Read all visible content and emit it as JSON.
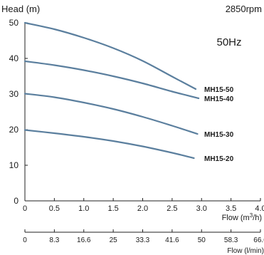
{
  "chart_data": {
    "type": "line",
    "ylabel": "Head (m)",
    "speed_label": "2850rpm",
    "frequency_label": "50Hz",
    "xlabel": "Flow",
    "xunit_prefix": "(m",
    "xunit_exp": "3",
    "xunit_suffix": "/h)",
    "xlabel2": "Flow (l/min)",
    "xlim": [
      0,
      4.0
    ],
    "ylim": [
      0,
      50
    ],
    "xticks": [
      "0",
      "0.5",
      "1.0",
      "1.5",
      "2.0",
      "2.5",
      "3.0",
      "3.5",
      "4.0"
    ],
    "yticks": [
      "0",
      "10",
      "20",
      "30",
      "40",
      "50"
    ],
    "xticks2": [
      "0",
      "8.3",
      "16.6",
      "25",
      "33.3",
      "41.6",
      "50",
      "58.3",
      "66.6"
    ],
    "grid": false,
    "line_color": "#5b7f9e",
    "series": [
      {
        "name": "MH15-50",
        "x": [
          0,
          0.5,
          1.0,
          1.5,
          2.0,
          2.5,
          2.9
        ],
        "y": [
          50,
          48.2,
          45.8,
          42.9,
          39.3,
          34.9,
          31.4
        ]
      },
      {
        "name": "MH15-40",
        "x": [
          0,
          0.5,
          1.0,
          1.5,
          2.0,
          2.5,
          2.95
        ],
        "y": [
          39.2,
          38.1,
          36.7,
          35.0,
          33.0,
          30.7,
          28.8
        ]
      },
      {
        "name": "MH15-30",
        "x": [
          0,
          0.5,
          1.0,
          1.5,
          2.0,
          2.5,
          2.93
        ],
        "y": [
          30.1,
          29.1,
          27.6,
          25.8,
          23.6,
          21.1,
          18.8
        ]
      },
      {
        "name": "MH15-20",
        "x": [
          0,
          0.5,
          1.0,
          1.5,
          2.0,
          2.5,
          2.87
        ],
        "y": [
          19.9,
          19.0,
          18.0,
          16.8,
          15.3,
          13.5,
          12.0
        ]
      }
    ]
  }
}
